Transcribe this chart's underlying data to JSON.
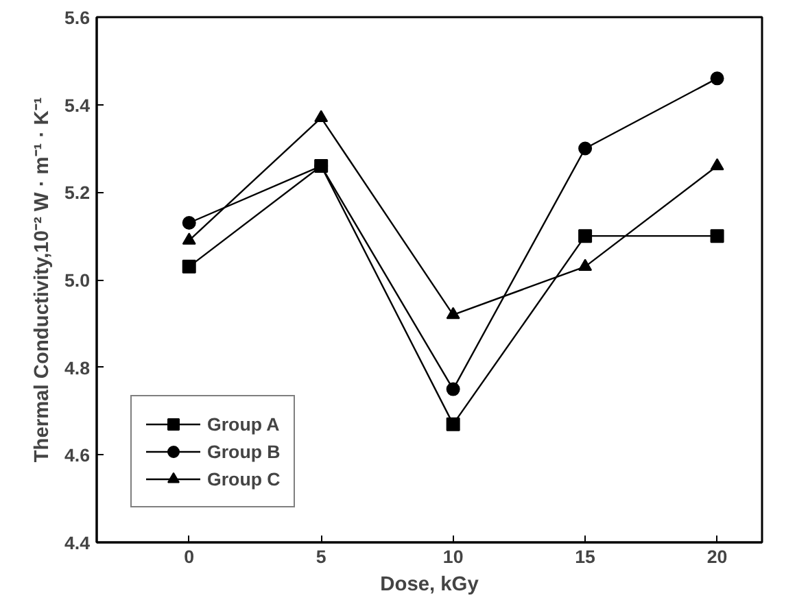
{
  "chart_data": {
    "type": "line",
    "xlabel": "Dose, kGy",
    "ylabel": "Thermal Conductivity,10⁻² W · m⁻¹ · K⁻¹",
    "x": [
      0,
      5,
      10,
      15,
      20
    ],
    "series": [
      {
        "name": "Group A",
        "color": "#000000",
        "marker": "square",
        "values": [
          5.03,
          5.26,
          4.67,
          5.1,
          5.1
        ]
      },
      {
        "name": "Group B",
        "color": "#000000",
        "marker": "circle",
        "values": [
          5.13,
          5.26,
          4.75,
          5.3,
          5.46
        ]
      },
      {
        "name": "Group C",
        "color": "#000000",
        "marker": "triangle",
        "values": [
          5.09,
          5.37,
          4.92,
          5.03,
          5.26
        ]
      }
    ],
    "xlim": [
      -3.5,
      21.7
    ],
    "xticks": [
      0,
      5,
      10,
      15,
      20
    ],
    "ylim": [
      4.4,
      5.6
    ],
    "yticks": [
      {
        "value": 4.4,
        "label": "4.4"
      },
      {
        "value": 4.6,
        "label": "4.6"
      },
      {
        "value": 4.8,
        "label": "4.8"
      },
      {
        "value": 5.0,
        "label": "5.0"
      },
      {
        "value": 5.2,
        "label": "5.2"
      },
      {
        "value": 5.4,
        "label": "5.4"
      },
      {
        "value": 5.6,
        "label": "5.6"
      }
    ],
    "grid": false,
    "legend": "bottom left",
    "line_style": "solid"
  }
}
